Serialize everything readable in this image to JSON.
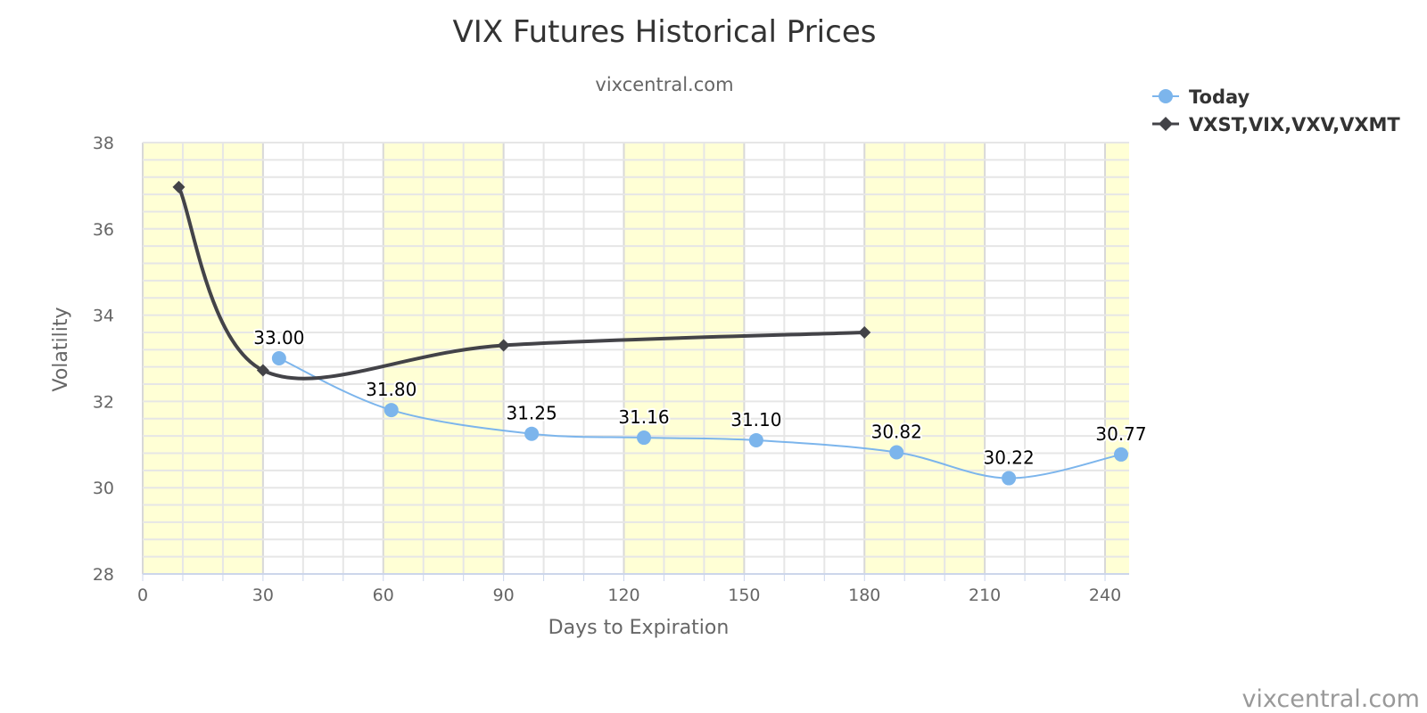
{
  "chart_data": {
    "type": "line",
    "title": "VIX Futures Historical Prices",
    "subtitle": "vixcentral.com",
    "xlabel": "Days to Expiration",
    "ylabel": "Volatility",
    "xlim": [
      0,
      246
    ],
    "ylim": [
      28,
      38
    ],
    "x_ticks": [
      0,
      30,
      60,
      90,
      120,
      150,
      180,
      210,
      240
    ],
    "y_ticks": [
      28,
      30,
      32,
      34,
      36,
      38
    ],
    "band_color": "#FFFFD5",
    "bands": [
      [
        0,
        30
      ],
      [
        60,
        90
      ],
      [
        120,
        150
      ],
      [
        180,
        210
      ],
      [
        240,
        246
      ]
    ],
    "grid": true,
    "legend_position": "top-right",
    "series": [
      {
        "name": "Today",
        "color": "#7CB5EC",
        "marker": "circle",
        "x": [
          34,
          62,
          97,
          125,
          153,
          188,
          216,
          244
        ],
        "values": [
          33.0,
          31.8,
          31.25,
          31.16,
          31.1,
          30.82,
          30.22,
          30.77
        ],
        "labels": [
          "33.00",
          "31.80",
          "31.25",
          "31.16",
          "31.10",
          "30.82",
          "30.22",
          "30.77"
        ]
      },
      {
        "name": "VXST,VIX,VXV,VXMT",
        "color": "#434348",
        "marker": "diamond",
        "x": [
          9,
          30,
          90,
          180
        ],
        "values": [
          36.97,
          32.72,
          33.3,
          33.6
        ]
      }
    ],
    "credit": "vixcentral.com"
  }
}
